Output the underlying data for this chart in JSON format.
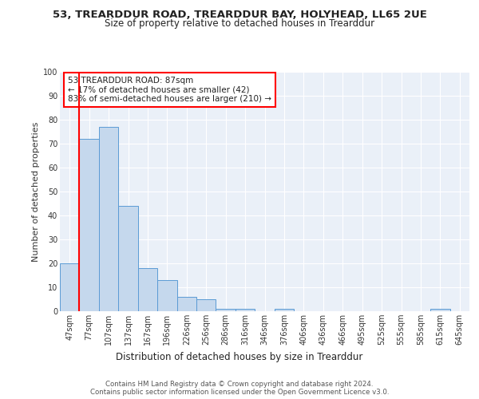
{
  "title1": "53, TREARDDUR ROAD, TREARDDUR BAY, HOLYHEAD, LL65 2UE",
  "title2": "Size of property relative to detached houses in Trearddur",
  "xlabel": "Distribution of detached houses by size in Trearddur",
  "ylabel": "Number of detached properties",
  "footer1": "Contains HM Land Registry data © Crown copyright and database right 2024.",
  "footer2": "Contains public sector information licensed under the Open Government Licence v3.0.",
  "annotation_title": "53 TREARDDUR ROAD: 87sqm",
  "annotation_line1": "← 17% of detached houses are smaller (42)",
  "annotation_line2": "83% of semi-detached houses are larger (210) →",
  "bin_labels": [
    "47sqm",
    "77sqm",
    "107sqm",
    "137sqm",
    "167sqm",
    "196sqm",
    "226sqm",
    "256sqm",
    "286sqm",
    "316sqm",
    "346sqm",
    "376sqm",
    "406sqm",
    "436sqm",
    "466sqm",
    "495sqm",
    "525sqm",
    "555sqm",
    "585sqm",
    "615sqm",
    "645sqm"
  ],
  "bar_values": [
    20,
    72,
    77,
    44,
    18,
    13,
    6,
    5,
    1,
    1,
    0,
    1,
    0,
    0,
    0,
    0,
    0,
    0,
    0,
    1,
    0
  ],
  "bar_color": "#c5d8ed",
  "bar_edge_color": "#5b9bd5",
  "ylim": [
    0,
    100
  ],
  "yticks": [
    0,
    10,
    20,
    30,
    40,
    50,
    60,
    70,
    80,
    90,
    100
  ],
  "plot_bg_color": "#eaf0f8",
  "grid_color": "white",
  "title1_fontsize": 9.5,
  "title2_fontsize": 8.5,
  "ylabel_fontsize": 8,
  "xlabel_fontsize": 8.5,
  "footer_fontsize": 6.2,
  "tick_fontsize": 7,
  "annot_fontsize": 7.5
}
